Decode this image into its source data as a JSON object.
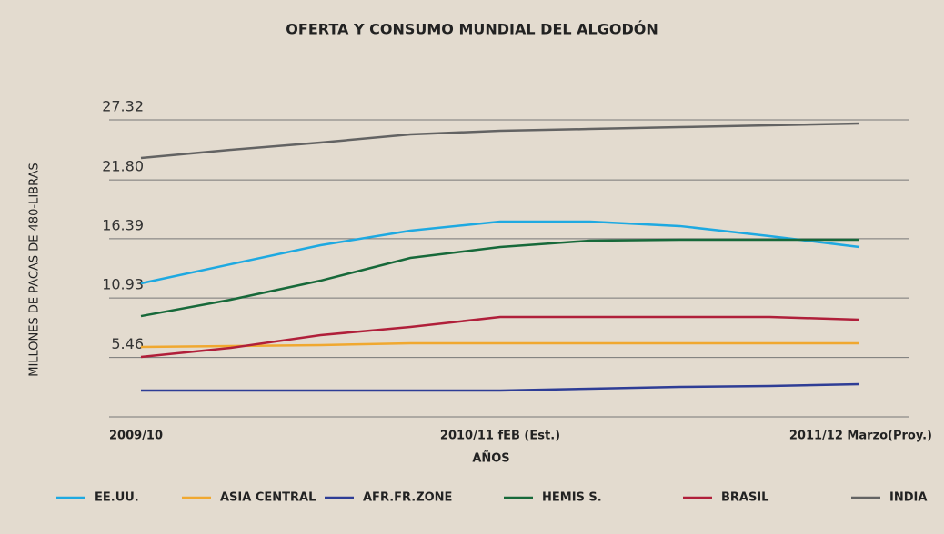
{
  "chart_data": {
    "type": "line",
    "title": "OFERTA Y CONSUMO MUNDIAL DEL ALGODÓN",
    "y_label": "MILLONES DE PACAS DE 480-LIBRAS",
    "x_label": "AÑOS",
    "categories": [
      "2009/10",
      null,
      null,
      null,
      "2010/11 fEB (Est.)",
      null,
      null,
      null,
      "2011/12 Marzo(Proy.)"
    ],
    "ylim": [
      0,
      27.32
    ],
    "yticks": [
      5.46,
      10.93,
      16.39,
      {
        "value": 21.8,
        "label": "21.80"
      },
      27.32
    ],
    "grid": true,
    "legend": "bottom",
    "series": [
      {
        "name": "EE.UU.",
        "color": "#1ea9e1",
        "values": [
          12.28,
          14.04,
          15.79,
          17.13,
          17.96,
          17.96,
          17.55,
          16.63,
          15.62
        ]
      },
      {
        "name": "ASIA CENTRAL",
        "color": "#f0a830",
        "values": [
          6.43,
          6.52,
          6.6,
          6.77,
          6.77,
          6.77,
          6.77,
          6.77,
          6.77
        ]
      },
      {
        "name": "AFR.FR.ZONE",
        "color": "#2e3d96",
        "values": [
          2.42,
          2.42,
          2.42,
          2.42,
          2.42,
          2.59,
          2.76,
          2.84,
          3.01
        ]
      },
      {
        "name": "HEMIS S.",
        "color": "#17693a",
        "values": [
          9.27,
          10.78,
          12.53,
          14.62,
          15.62,
          16.21,
          16.29,
          16.29,
          16.29
        ]
      },
      {
        "name": "BRASIL",
        "color": "#b01f3a",
        "values": [
          5.51,
          6.35,
          7.52,
          8.27,
          9.19,
          9.19,
          9.19,
          9.19,
          8.94
        ]
      },
      {
        "name": "INDIA",
        "color": "#636363",
        "values": [
          23.81,
          24.56,
          25.23,
          25.98,
          26.32,
          26.48,
          26.65,
          26.82,
          26.99
        ]
      }
    ]
  }
}
